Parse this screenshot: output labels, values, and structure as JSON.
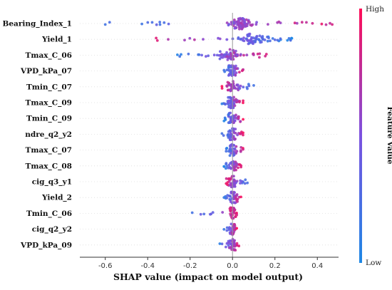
{
  "chart_data": {
    "type": "scatter",
    "subtype": "shap-beeswarm-summary",
    "title": "",
    "xlabel": "SHAP value (impact on model output)",
    "ylabel": "",
    "xlim": [
      -0.72,
      0.5
    ],
    "xticks": [
      -0.6,
      -0.4,
      -0.2,
      0.0,
      0.2,
      0.4
    ],
    "xtick_labels": [
      "-0.6",
      "-0.4",
      "-0.2",
      "0.0",
      "0.2",
      "0.4"
    ],
    "zero_line": true,
    "grid": false,
    "colorbar": {
      "title": "Feature Value",
      "high_label": "High",
      "low_label": "Low",
      "low_color": "#1e88e5",
      "high_color": "#ff0d57"
    },
    "features": [
      {
        "name": "Bearing_Index_1",
        "min": -0.6,
        "max": 0.47,
        "center": 0.04,
        "spread": 0.06,
        "n": 95,
        "color_trend": 1
      },
      {
        "name": "Yield_1",
        "min": -0.36,
        "max": 0.28,
        "center": 0.1,
        "spread": 0.07,
        "n": 80,
        "color_trend": -1
      },
      {
        "name": "Tmax_C_06",
        "min": -0.26,
        "max": 0.16,
        "center": -0.01,
        "spread": 0.06,
        "n": 70,
        "color_trend": 1
      },
      {
        "name": "VPD_kPa_07",
        "min": -0.04,
        "max": 0.05,
        "center": 0.0,
        "spread": 0.02,
        "n": 45,
        "color_trend": 1
      },
      {
        "name": "Tmin_C_07",
        "min": -0.05,
        "max": 0.1,
        "center": 0.0,
        "spread": 0.03,
        "n": 45,
        "color_trend": -1
      },
      {
        "name": "Tmax_C_09",
        "min": -0.05,
        "max": 0.05,
        "center": 0.0,
        "spread": 0.02,
        "n": 50,
        "color_trend": 1
      },
      {
        "name": "Tmin_C_09",
        "min": -0.04,
        "max": 0.05,
        "center": 0.0,
        "spread": 0.02,
        "n": 50,
        "color_trend": 1
      },
      {
        "name": "ndre_q2_y2",
        "min": -0.05,
        "max": 0.05,
        "center": 0.0,
        "spread": 0.02,
        "n": 50,
        "color_trend": 1
      },
      {
        "name": "Tmax_C_07",
        "min": -0.03,
        "max": 0.05,
        "center": 0.0,
        "spread": 0.02,
        "n": 40,
        "color_trend": 1
      },
      {
        "name": "Tmax_C_08",
        "min": -0.04,
        "max": 0.04,
        "center": 0.0,
        "spread": 0.02,
        "n": 40,
        "color_trend": 1
      },
      {
        "name": "cig_q3_y1",
        "min": -0.03,
        "max": 0.07,
        "center": 0.0,
        "spread": 0.02,
        "n": 45,
        "color_trend": -1
      },
      {
        "name": "Yield_2",
        "min": -0.04,
        "max": 0.04,
        "center": 0.0,
        "spread": 0.02,
        "n": 40,
        "color_trend": 1
      },
      {
        "name": "Tmin_C_06",
        "min": -0.19,
        "max": 0.02,
        "center": 0.0,
        "spread": 0.02,
        "n": 40,
        "color_trend": 1
      },
      {
        "name": "cig_q2_y2",
        "min": -0.04,
        "max": 0.02,
        "center": 0.0,
        "spread": 0.015,
        "n": 35,
        "color_trend": 1
      },
      {
        "name": "VPD_kPa_09",
        "min": -0.06,
        "max": 0.03,
        "center": 0.0,
        "spread": 0.02,
        "n": 45,
        "color_trend": 1
      }
    ]
  }
}
